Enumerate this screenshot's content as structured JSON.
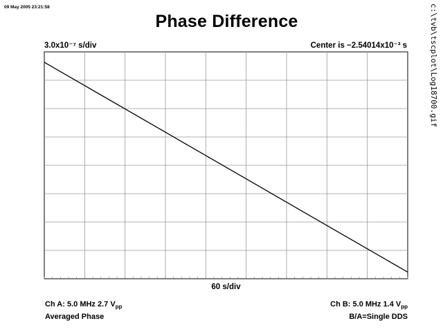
{
  "timestamp": "09 May 2005 23:21:58",
  "file_path": "c:\\tvb\\tscplot\\Log18700.gif",
  "chart_data": {
    "type": "line",
    "title": "Phase Difference",
    "y_scale_label": "3.0x10⁻⁷ s/div",
    "center_label": "Center is −2.54014x10⁻³ s",
    "x_scale_label": "60 s/div",
    "grid": true,
    "x_divisions": 9,
    "y_divisions": 8,
    "xlim": [
      0,
      540
    ],
    "ylim": [
      -2.4e-06,
      0
    ],
    "series": [
      {
        "x": [
          0,
          540
        ],
        "y": [
          -1.1e-07,
          -2.33e-06
        ]
      }
    ]
  },
  "footer": {
    "left_line1": "Ch A: 5.0 MHz 2.7 V",
    "left_line1_sub": "pp",
    "left_line2": "Averaged Phase",
    "right_line1": "Ch B: 5.0 MHz 1.4 V",
    "right_line1_sub": "pp",
    "right_line2": "B/A=Single DDS"
  }
}
